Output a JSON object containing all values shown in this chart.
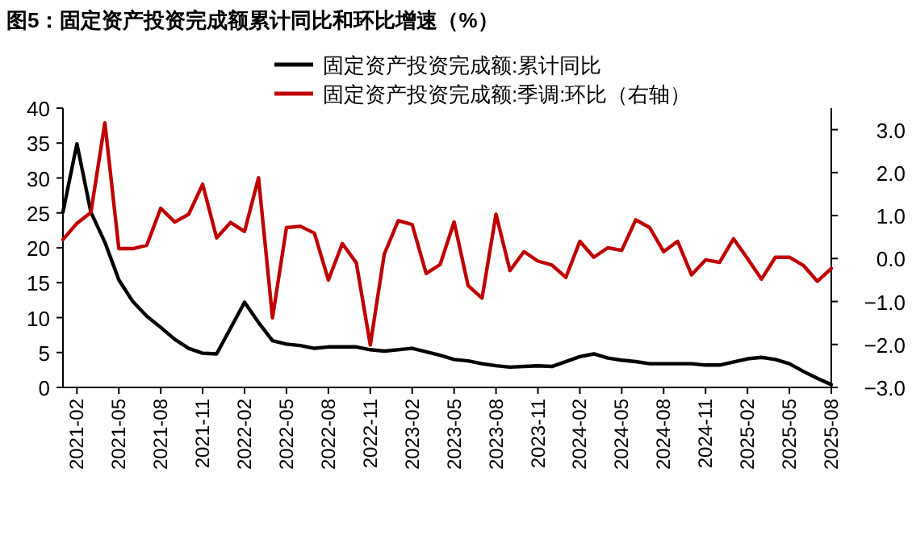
{
  "chart_data": {
    "type": "line",
    "title": "图5：固定资产投资完成额累计同比和环比增速（%）",
    "legend": "top",
    "x": [
      "2021-01",
      "2021-02",
      "2021-03",
      "2021-04",
      "2021-05",
      "2021-06",
      "2021-07",
      "2021-08",
      "2021-09",
      "2021-10",
      "2021-11",
      "2021-12",
      "2022-01",
      "2022-02",
      "2022-03",
      "2022-04",
      "2022-05",
      "2022-06",
      "2022-07",
      "2022-08",
      "2022-09",
      "2022-10",
      "2022-11",
      "2022-12",
      "2023-01",
      "2023-02",
      "2023-03",
      "2023-04",
      "2023-05",
      "2023-06",
      "2023-07",
      "2023-08",
      "2023-09",
      "2023-10",
      "2023-11",
      "2023-12",
      "2024-01",
      "2024-02",
      "2024-03",
      "2024-04",
      "2024-05",
      "2024-06",
      "2024-07",
      "2024-08",
      "2024-09",
      "2024-10",
      "2024-11",
      "2024-12",
      "2025-01",
      "2025-02",
      "2025-03",
      "2025-04",
      "2025-05",
      "2025-06",
      "2025-07",
      "2025-08"
    ],
    "series": [
      {
        "name": "固定资产投资完成额:累计同比",
        "color": "#000000",
        "values": [
          25.1,
          34.9,
          25.1,
          20.8,
          15.4,
          12.3,
          10.2,
          8.6,
          6.9,
          5.6,
          4.9,
          4.8,
          null,
          12.2,
          9.3,
          6.7,
          6.2,
          6.0,
          5.6,
          5.8,
          5.8,
          5.8,
          5.4,
          5.2,
          null,
          5.6,
          5.1,
          4.6,
          4.0,
          3.8,
          3.4,
          3.1,
          2.9,
          3.0,
          3.1,
          3.0,
          null,
          4.4,
          4.8,
          4.2,
          3.9,
          3.7,
          3.4,
          3.4,
          3.4,
          3.4,
          3.2,
          3.2,
          null,
          4.1,
          4.3,
          4.0,
          3.4,
          2.3,
          1.3,
          0.4
        ]
      },
      {
        "name": "固定资产投资完成额:季调:环比（右轴）",
        "color": "#c00000",
        "axis": "y2",
        "values": [
          0.44,
          0.82,
          1.07,
          3.16,
          0.23,
          0.23,
          0.31,
          1.17,
          0.85,
          1.03,
          1.73,
          0.48,
          0.84,
          0.63,
          1.88,
          -1.38,
          0.72,
          0.75,
          0.59,
          -0.5,
          0.35,
          -0.1,
          -2.01,
          0.1,
          0.88,
          0.79,
          -0.35,
          -0.14,
          0.85,
          -0.63,
          -0.92,
          1.03,
          -0.28,
          0.16,
          -0.06,
          -0.15,
          -0.44,
          0.4,
          0.03,
          0.25,
          0.19,
          0.9,
          0.72,
          0.16,
          0.4,
          -0.38,
          -0.03,
          -0.09,
          0.46,
          0.0,
          -0.48,
          0.03,
          0.03,
          -0.16,
          -0.53,
          -0.23
        ]
      }
    ],
    "xlim": [
      "2021-01",
      "2025-08"
    ],
    "xticks": [
      "2021-02",
      "2021-05",
      "2021-08",
      "2021-11",
      "2022-02",
      "2022-05",
      "2022-08",
      "2022-11",
      "2023-02",
      "2023-05",
      "2023-08",
      "2023-11",
      "2024-02",
      "2024-05",
      "2024-08",
      "2024-11",
      "2025-02",
      "2025-05",
      "2025-08"
    ],
    "ylim": [
      0,
      40
    ],
    "yticks": [
      0,
      5,
      10,
      15,
      20,
      25,
      30,
      35,
      40
    ],
    "y2lim": [
      -3,
      3.5
    ],
    "y2ticks": [
      {
        "value": -3,
        "label": "−3.0"
      },
      {
        "value": -2,
        "label": "−2.0"
      },
      {
        "value": -1,
        "label": "−1.0"
      },
      {
        "value": 0,
        "label": "0.0"
      },
      {
        "value": 1,
        "label": "1.0"
      },
      {
        "value": 2,
        "label": "2.0"
      },
      {
        "value": 3,
        "label": "3.0"
      }
    ]
  }
}
